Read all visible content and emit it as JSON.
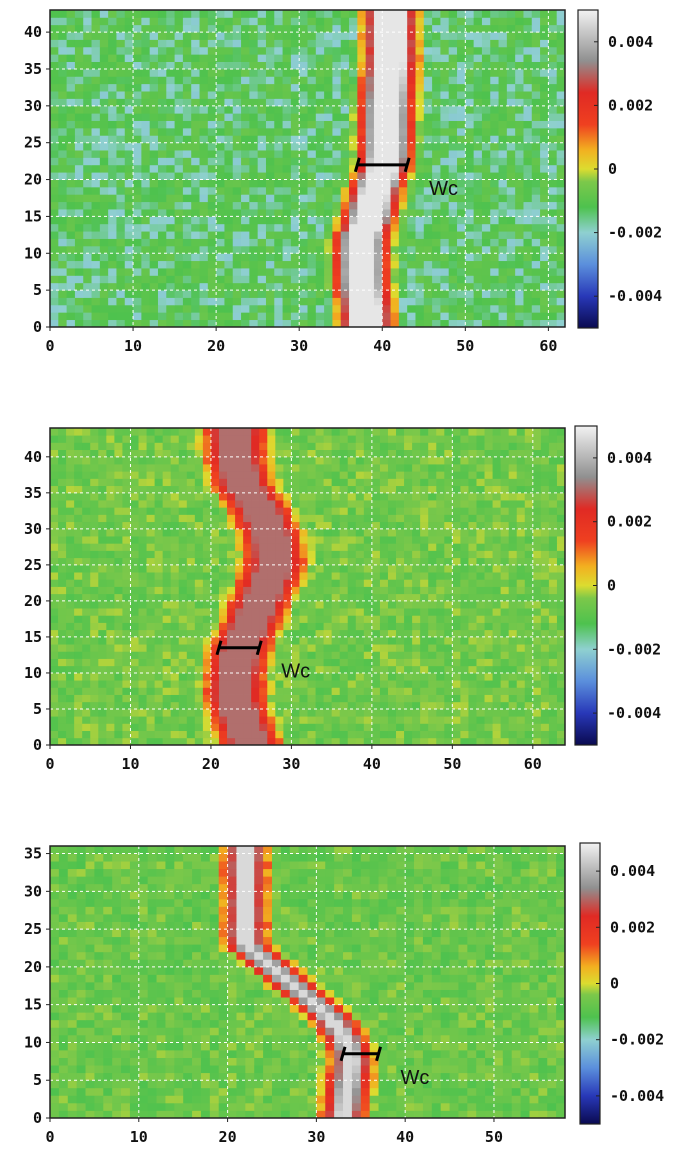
{
  "chart_data": [
    {
      "type": "heatmap",
      "x_ticks": [
        "0",
        "10",
        "20",
        "30",
        "40",
        "50",
        "60"
      ],
      "y_ticks": [
        "0",
        "5",
        "10",
        "15",
        "20",
        "25",
        "30",
        "35",
        "40"
      ],
      "xlim": [
        0,
        62
      ],
      "ylim": [
        0,
        43
      ],
      "colorbar_ticks": [
        "0.004",
        "0.002",
        "0",
        "-0.002",
        "-0.004"
      ],
      "colorbar_range": [
        -0.005,
        0.005
      ],
      "grid": true,
      "background_value": -0.0015,
      "band": {
        "x_center": [
          38,
          38,
          37.5,
          37.5,
          37.5,
          38.5,
          39,
          40,
          40.5,
          40.5,
          40.5,
          41,
          41
        ],
        "y": [
          0,
          3,
          6,
          9,
          12,
          15,
          18,
          21,
          24,
          27,
          30,
          36,
          43
        ],
        "width": 6,
        "peak_value": 0.0048
      },
      "annotation": {
        "text": "Wc",
        "x1": 37,
        "x2": 43,
        "y": 22
      }
    },
    {
      "type": "heatmap",
      "x_ticks": [
        "0",
        "10",
        "20",
        "30",
        "40",
        "50",
        "60"
      ],
      "y_ticks": [
        "0",
        "5",
        "10",
        "15",
        "20",
        "25",
        "30",
        "35",
        "40"
      ],
      "xlim": [
        0,
        64
      ],
      "ylim": [
        0,
        44
      ],
      "colorbar_ticks": [
        "0.004",
        "0.002",
        "0",
        "-0.002",
        "-0.004"
      ],
      "colorbar_range": [
        -0.005,
        0.005
      ],
      "grid": true,
      "background_value": -0.0008,
      "band": {
        "x_center": [
          25,
          24,
          23,
          23,
          23.5,
          25,
          26.5,
          28,
          27.5,
          26,
          24,
          23,
          23
        ],
        "y": [
          0,
          3,
          6,
          9,
          13,
          17,
          21,
          25,
          29,
          33,
          36,
          40,
          44
        ],
        "width": 7,
        "peak_value": 0.0031
      },
      "annotation": {
        "text": "Wc",
        "x1": 21,
        "x2": 26,
        "y": 13.5
      }
    },
    {
      "type": "heatmap",
      "x_ticks": [
        "0",
        "10",
        "20",
        "30",
        "40",
        "50"
      ],
      "y_ticks": [
        "0",
        "5",
        "10",
        "15",
        "20",
        "25",
        "30",
        "35"
      ],
      "xlim": [
        0,
        58
      ],
      "ylim": [
        0,
        36
      ],
      "colorbar_ticks": [
        "0.004",
        "0.002",
        "0",
        "-0.002",
        "-0.004"
      ],
      "colorbar_range": [
        -0.005,
        0.005
      ],
      "grid": true,
      "background_value": -0.0009,
      "band": {
        "x_center": [
          33,
          33.5,
          34,
          33,
          31,
          28,
          25,
          22
        ],
        "y": [
          0,
          4,
          8,
          11,
          14,
          17,
          20,
          23
        ],
        "width": 4,
        "peak_value": 0.0046
      },
      "annotation": {
        "text": "Wc",
        "x1": 33,
        "x2": 37,
        "y": 8.5
      }
    }
  ]
}
